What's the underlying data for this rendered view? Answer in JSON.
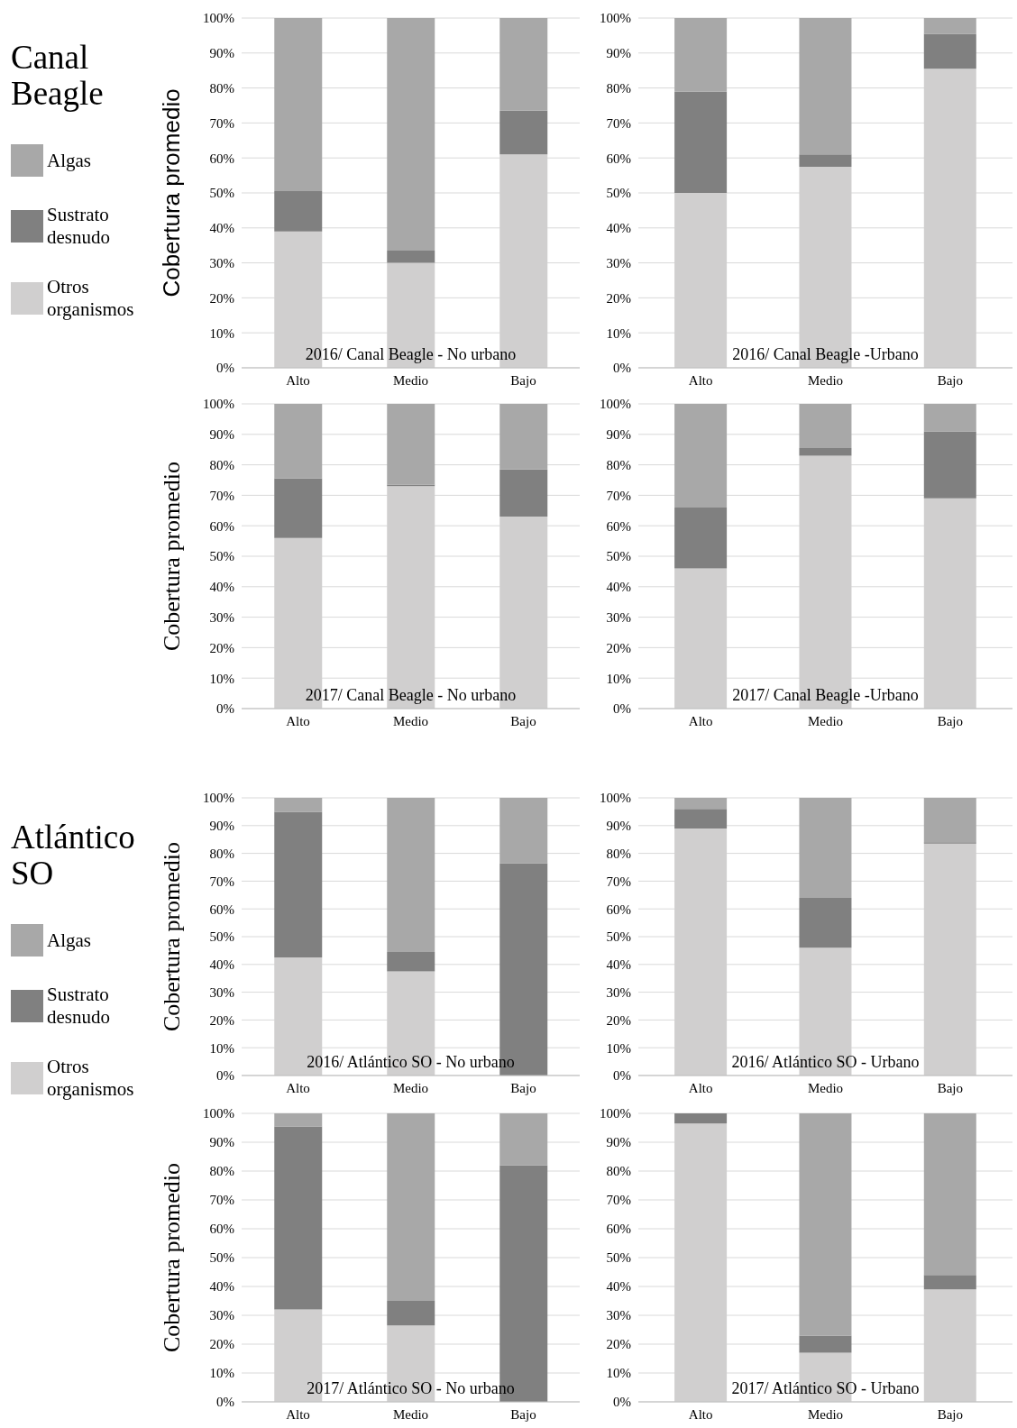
{
  "chart_data": [
    {
      "type": "bar",
      "stacked": true,
      "annotations": [
        "Canal Beagle"
      ],
      "title": "2016/ Canal Beagle - No urbano",
      "ylabel": "Cobertura promedio",
      "legend": "left",
      "grid": "y",
      "categories": [
        "Alto",
        "Medio",
        "Bajo"
      ],
      "ylim": [
        0,
        100
      ],
      "yticks": [
        {
          "value": 0,
          "label": "0%"
        },
        {
          "value": 10,
          "label": "10%"
        },
        {
          "value": 20,
          "label": "20%"
        },
        {
          "value": 30,
          "label": "30%"
        },
        {
          "value": 40,
          "label": "40%"
        },
        {
          "value": 50,
          "label": "50%"
        },
        {
          "value": 60,
          "label": "60%"
        },
        {
          "value": 70,
          "label": "70%"
        },
        {
          "value": 80,
          "label": "80%"
        },
        {
          "value": 90,
          "label": "90%"
        },
        {
          "value": 100,
          "label": "100%"
        }
      ],
      "series": [
        {
          "name": "Otros organismos",
          "color": "#d0cfcf",
          "values": [
            39,
            30,
            61
          ]
        },
        {
          "name": "Sustrato desnudo",
          "color": "#808080",
          "values": [
            11.5,
            3.5,
            12.5
          ]
        },
        {
          "name": "Algas",
          "color": "#a8a8a8",
          "values": [
            49.5,
            66.5,
            26.5
          ]
        }
      ]
    },
    {
      "type": "bar",
      "stacked": true,
      "title": "2016/ Canal Beagle -Urbano",
      "grid": "y",
      "categories": [
        "Alto",
        "Medio",
        "Bajo"
      ],
      "ylim": [
        0,
        100
      ],
      "yticks": [
        {
          "value": 0,
          "label": "0%"
        },
        {
          "value": 10,
          "label": "10%"
        },
        {
          "value": 20,
          "label": "20%"
        },
        {
          "value": 30,
          "label": "30%"
        },
        {
          "value": 40,
          "label": "40%"
        },
        {
          "value": 50,
          "label": "50%"
        },
        {
          "value": 60,
          "label": "60%"
        },
        {
          "value": 70,
          "label": "70%"
        },
        {
          "value": 80,
          "label": "80%"
        },
        {
          "value": 90,
          "label": "90%"
        },
        {
          "value": 100,
          "label": "100%"
        }
      ],
      "series": [
        {
          "color": "#d0cfcf",
          "values": [
            50,
            57.5,
            85.5
          ]
        },
        {
          "color": "#808080",
          "values": [
            29,
            3.5,
            10
          ]
        },
        {
          "color": "#a8a8a8",
          "values": [
            21,
            39,
            4.5
          ]
        }
      ]
    },
    {
      "type": "bar",
      "stacked": true,
      "title": "2017/ Canal Beagle - No urbano",
      "ylabel": "Cobertura promedio",
      "grid": "y",
      "categories": [
        "Alto",
        "Medio",
        "Bajo"
      ],
      "ylim": [
        0,
        100
      ],
      "yticks": [
        {
          "value": 0,
          "label": "0%"
        },
        {
          "value": 10,
          "label": "10%"
        },
        {
          "value": 20,
          "label": "20%"
        },
        {
          "value": 30,
          "label": "30%"
        },
        {
          "value": 40,
          "label": "40%"
        },
        {
          "value": 50,
          "label": "50%"
        },
        {
          "value": 60,
          "label": "60%"
        },
        {
          "value": 70,
          "label": "70%"
        },
        {
          "value": 80,
          "label": "80%"
        },
        {
          "value": 90,
          "label": "90%"
        },
        {
          "value": 100,
          "label": "100%"
        }
      ],
      "series": [
        {
          "color": "#d0cfcf",
          "values": [
            56,
            73,
            63
          ]
        },
        {
          "color": "#808080",
          "values": [
            19.5,
            0.5,
            15.5
          ]
        },
        {
          "color": "#a8a8a8",
          "values": [
            24.5,
            26.5,
            21.5
          ]
        }
      ]
    },
    {
      "type": "bar",
      "stacked": true,
      "title": "2017/ Canal Beagle -Urbano",
      "grid": "y",
      "categories": [
        "Alto",
        "Medio",
        "Bajo"
      ],
      "ylim": [
        0,
        100
      ],
      "yticks": [
        {
          "value": 0,
          "label": "0%"
        },
        {
          "value": 10,
          "label": "10%"
        },
        {
          "value": 20,
          "label": "20%"
        },
        {
          "value": 30,
          "label": "30%"
        },
        {
          "value": 40,
          "label": "40%"
        },
        {
          "value": 50,
          "label": "50%"
        },
        {
          "value": 60,
          "label": "60%"
        },
        {
          "value": 70,
          "label": "70%"
        },
        {
          "value": 80,
          "label": "80%"
        },
        {
          "value": 90,
          "label": "90%"
        },
        {
          "value": 100,
          "label": "100%"
        }
      ],
      "series": [
        {
          "color": "#d0cfcf",
          "values": [
            46,
            83,
            69
          ]
        },
        {
          "color": "#808080",
          "values": [
            20,
            2.5,
            22
          ]
        },
        {
          "color": "#a8a8a8",
          "values": [
            34,
            14.5,
            9
          ]
        }
      ]
    },
    {
      "type": "bar",
      "stacked": true,
      "annotations": [
        "Atlántico SO"
      ],
      "title": "2016/ Atlántico SO - No urbano",
      "ylabel": "Cobertura promedio",
      "legend": "left",
      "grid": "y",
      "categories": [
        "Alto",
        "Medio",
        "Bajo"
      ],
      "ylim": [
        0,
        100
      ],
      "yticks": [
        {
          "value": 0,
          "label": "0%"
        },
        {
          "value": 10,
          "label": "10%"
        },
        {
          "value": 20,
          "label": "20%"
        },
        {
          "value": 30,
          "label": "30%"
        },
        {
          "value": 40,
          "label": "40%"
        },
        {
          "value": 50,
          "label": "50%"
        },
        {
          "value": 60,
          "label": "60%"
        },
        {
          "value": 70,
          "label": "70%"
        },
        {
          "value": 80,
          "label": "80%"
        },
        {
          "value": 90,
          "label": "90%"
        },
        {
          "value": 100,
          "label": "100%"
        }
      ],
      "series": [
        {
          "name": "Otros organismos",
          "color": "#d0cfcf",
          "values": [
            42.5,
            37.5,
            0
          ]
        },
        {
          "name": "Sustrato desnudo",
          "color": "#808080",
          "values": [
            52.5,
            7,
            76.5
          ]
        },
        {
          "name": "Algas",
          "color": "#a8a8a8",
          "values": [
            5,
            55.5,
            23.5
          ]
        }
      ]
    },
    {
      "type": "bar",
      "stacked": true,
      "title": "2016/ Atlántico SO - Urbano",
      "grid": "y",
      "categories": [
        "Alto",
        "Medio",
        "Bajo"
      ],
      "ylim": [
        0,
        100
      ],
      "yticks": [
        {
          "value": 0,
          "label": "0%"
        },
        {
          "value": 10,
          "label": "10%"
        },
        {
          "value": 20,
          "label": "20%"
        },
        {
          "value": 30,
          "label": "30%"
        },
        {
          "value": 40,
          "label": "40%"
        },
        {
          "value": 50,
          "label": "50%"
        },
        {
          "value": 60,
          "label": "60%"
        },
        {
          "value": 70,
          "label": "70%"
        },
        {
          "value": 80,
          "label": "80%"
        },
        {
          "value": 90,
          "label": "90%"
        },
        {
          "value": 100,
          "label": "100%"
        }
      ],
      "series": [
        {
          "color": "#d0cfcf",
          "values": [
            89,
            46,
            83.5
          ]
        },
        {
          "color": "#808080",
          "values": [
            7,
            18,
            0.5
          ]
        },
        {
          "color": "#a8a8a8",
          "values": [
            4,
            36,
            16
          ]
        }
      ]
    },
    {
      "type": "bar",
      "stacked": true,
      "title": "2017/ Atlántico SO - No urbano",
      "ylabel": "Cobertura promedio",
      "grid": "y",
      "categories": [
        "Alto",
        "Medio",
        "Bajo"
      ],
      "ylim": [
        0,
        100
      ],
      "yticks": [
        {
          "value": 0,
          "label": "0%"
        },
        {
          "value": 10,
          "label": "10%"
        },
        {
          "value": 20,
          "label": "20%"
        },
        {
          "value": 30,
          "label": "30%"
        },
        {
          "value": 40,
          "label": "40%"
        },
        {
          "value": 50,
          "label": "50%"
        },
        {
          "value": 60,
          "label": "60%"
        },
        {
          "value": 70,
          "label": "70%"
        },
        {
          "value": 80,
          "label": "80%"
        },
        {
          "value": 90,
          "label": "90%"
        },
        {
          "value": 100,
          "label": "100%"
        }
      ],
      "series": [
        {
          "color": "#d0cfcf",
          "values": [
            32,
            26.5,
            0
          ]
        },
        {
          "color": "#808080",
          "values": [
            63.5,
            8.5,
            82
          ]
        },
        {
          "color": "#a8a8a8",
          "values": [
            4.5,
            65,
            18
          ]
        }
      ]
    },
    {
      "type": "bar",
      "stacked": true,
      "title": "2017/ Atlántico SO - Urbano",
      "grid": "y",
      "categories": [
        "Alto",
        "Medio",
        "Bajo"
      ],
      "ylim": [
        0,
        100
      ],
      "yticks": [
        {
          "value": 0,
          "label": "0%"
        },
        {
          "value": 10,
          "label": "10%"
        },
        {
          "value": 20,
          "label": "20%"
        },
        {
          "value": 30,
          "label": "30%"
        },
        {
          "value": 40,
          "label": "40%"
        },
        {
          "value": 50,
          "label": "50%"
        },
        {
          "value": 60,
          "label": "60%"
        },
        {
          "value": 70,
          "label": "70%"
        },
        {
          "value": 80,
          "label": "80%"
        },
        {
          "value": 90,
          "label": "90%"
        },
        {
          "value": 100,
          "label": "100%"
        }
      ],
      "series": [
        {
          "color": "#d0cfcf",
          "values": [
            96.5,
            17,
            39
          ]
        },
        {
          "color": "#808080",
          "values": [
            3.5,
            6,
            5
          ]
        },
        {
          "color": "#a8a8a8",
          "values": [
            0,
            77,
            56
          ]
        }
      ]
    }
  ]
}
